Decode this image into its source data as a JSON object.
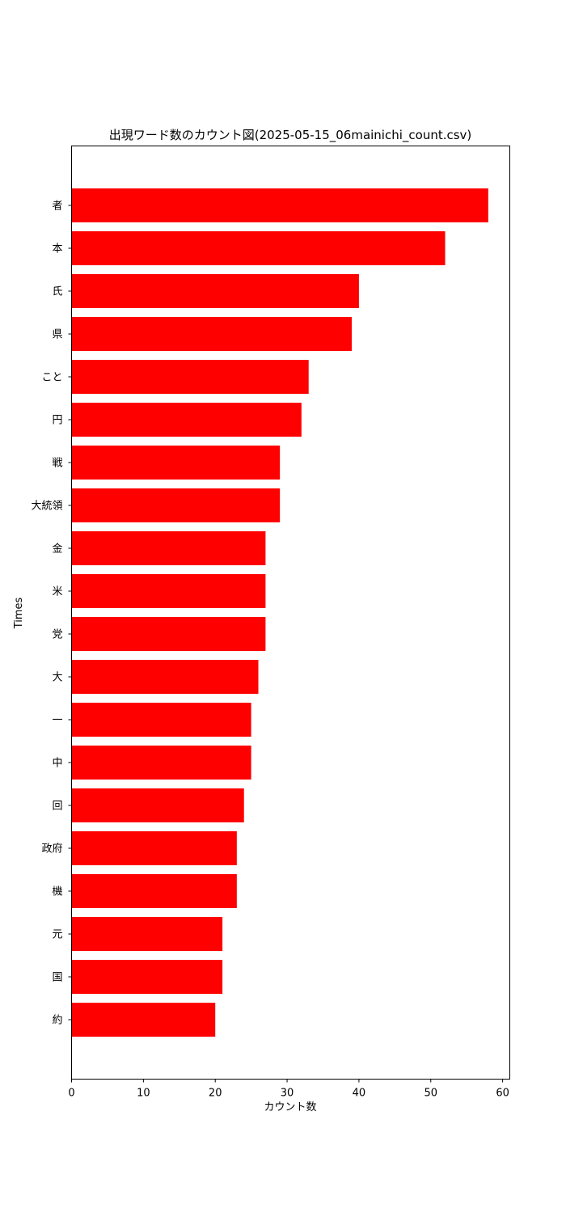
{
  "chart_data": {
    "type": "bar",
    "orientation": "horizontal",
    "title": "出現ワード数のカウント図(2025-05-15_06mainichi_count.csv)",
    "xlabel": "カウント数",
    "ylabel": "Times",
    "xlim": [
      0,
      61
    ],
    "xticks": [
      0,
      10,
      20,
      30,
      40,
      50,
      60
    ],
    "grid": false,
    "bar_color": "#ff0000",
    "categories": [
      "者",
      "本",
      "氏",
      "県",
      "こと",
      "円",
      "戦",
      "大統領",
      "金",
      "米",
      "党",
      "大",
      "一",
      "中",
      "回",
      "政府",
      "機",
      "元",
      "国",
      "約"
    ],
    "values": [
      58,
      52,
      40,
      39,
      33,
      32,
      29,
      29,
      27,
      27,
      27,
      26,
      25,
      25,
      24,
      23,
      23,
      21,
      21,
      20
    ]
  }
}
